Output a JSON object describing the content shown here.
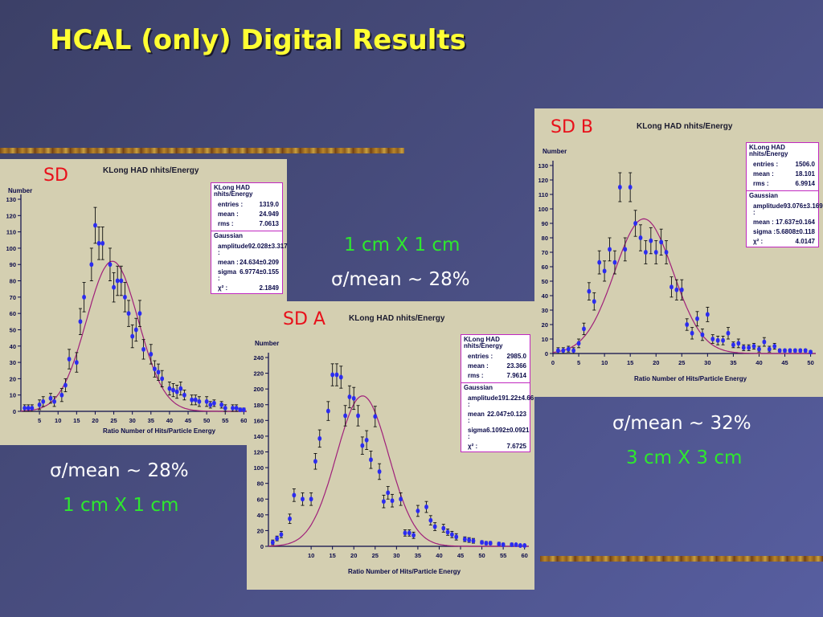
{
  "slide": {
    "title": "HCAL (only) Digital Results",
    "notes": {
      "top_cell": "1 cm X 1 cm",
      "top_sigma": "σ/mean ~ 28%",
      "left_sigma": "σ/mean ~ 28%",
      "left_cell": "1 cm X 1 cm",
      "right_sigma": "σ/mean ~ 32%",
      "right_cell": "3 cm X 3 cm"
    }
  },
  "chart_data": [
    {
      "id": "sd",
      "label": "SD",
      "type": "scatter",
      "title": "KLong HAD nhits/Energy",
      "xlabel": "Ratio Number of Hits/Particle Energy",
      "ylabel": "Number",
      "xlim": [
        0,
        61
      ],
      "ylim": [
        0,
        130
      ],
      "xticks": [
        5,
        10,
        15,
        20,
        25,
        30,
        35,
        40,
        45,
        50,
        55,
        60
      ],
      "yticks": [
        0,
        10,
        20,
        30,
        40,
        50,
        60,
        70,
        80,
        90,
        100,
        110,
        120,
        130
      ],
      "stats": {
        "header": "KLong HAD nhits/Energy",
        "entries": "1319.0",
        "mean": "24.949",
        "rms": "7.0613",
        "fit": "Gaussian",
        "amplitude": "92.028±3.317",
        "fit_mean": "24.634±0.209",
        "sigma": "6.9774±0.155",
        "chi2": "2.1849"
      },
      "fit": {
        "amplitude": 92.0,
        "mean": 24.63,
        "sigma": 6.98
      },
      "points": {
        "x": [
          1,
          2,
          3,
          5,
          6,
          8,
          9,
          11,
          12,
          13,
          15,
          16,
          17,
          19,
          20,
          21,
          22,
          24,
          25,
          26,
          27,
          28,
          29,
          30,
          31,
          32,
          33,
          35,
          36,
          37,
          38,
          40,
          41,
          42,
          43,
          44,
          46,
          47,
          48,
          50,
          51,
          52,
          54,
          55,
          57,
          58,
          59,
          60
        ],
        "y": [
          2,
          2,
          2,
          4,
          6,
          8,
          6,
          10,
          16,
          32,
          30,
          55,
          70,
          90,
          114,
          103,
          103,
          90,
          76,
          80,
          80,
          70,
          60,
          46,
          50,
          60,
          38,
          35,
          26,
          24,
          20,
          14,
          13,
          12,
          14,
          10,
          7,
          7,
          6,
          6,
          4,
          5,
          4,
          2,
          2,
          2,
          1,
          1
        ],
        "err": [
          2,
          2,
          2,
          3,
          3,
          3,
          3,
          4,
          4,
          6,
          6,
          8,
          9,
          10,
          11,
          10,
          10,
          10,
          9,
          9,
          9,
          9,
          8,
          7,
          7,
          8,
          6,
          6,
          5,
          5,
          5,
          4,
          4,
          4,
          4,
          3,
          3,
          3,
          3,
          3,
          2,
          2,
          2,
          2,
          2,
          2,
          1,
          1
        ]
      }
    },
    {
      "id": "sda",
      "label": "SD A",
      "type": "scatter",
      "title": "KLong HAD nhits/Energy",
      "xlabel": "Ratio Number of Hits/Particle Energy",
      "ylabel": "Number",
      "xlim": [
        0,
        61
      ],
      "ylim": [
        0,
        240
      ],
      "xticks": [
        10,
        15,
        20,
        25,
        30,
        35,
        40,
        45,
        50,
        55,
        60
      ],
      "yticks": [
        0,
        20,
        40,
        60,
        80,
        100,
        120,
        140,
        160,
        180,
        200,
        220,
        240
      ],
      "stats": {
        "header": "KLong HAD nhits/Energy",
        "entries": "2985.0",
        "mean": "23.366",
        "rms": "7.9614",
        "fit": "Gaussian",
        "amplitude": "191.22±4.66",
        "fit_mean": "22.047±0.123",
        "sigma": "6.1092±0.0921",
        "chi2": "7.6725"
      },
      "fit": {
        "amplitude": 191.2,
        "mean": 22.05,
        "sigma": 6.11
      },
      "points": {
        "x": [
          1,
          2,
          3,
          5,
          6,
          8,
          10,
          11,
          12,
          14,
          15,
          16,
          17,
          18,
          19,
          20,
          21,
          22,
          23,
          24,
          25,
          26,
          27,
          28,
          29,
          31,
          32,
          33,
          34,
          35,
          37,
          38,
          39,
          41,
          42,
          43,
          44,
          46,
          47,
          48,
          50,
          51,
          52,
          54,
          55,
          57,
          58,
          59,
          60
        ],
        "y": [
          5,
          10,
          15,
          35,
          65,
          60,
          60,
          108,
          137,
          172,
          218,
          218,
          215,
          166,
          190,
          188,
          166,
          128,
          135,
          110,
          165,
          95,
          57,
          68,
          58,
          60,
          17,
          17,
          14,
          45,
          50,
          33,
          25,
          23,
          18,
          15,
          12,
          9,
          8,
          7,
          5,
          4,
          4,
          3,
          2,
          2,
          2,
          1,
          1
        ],
        "err": [
          3,
          3,
          4,
          6,
          8,
          8,
          8,
          10,
          11,
          12,
          14,
          14,
          14,
          13,
          14,
          14,
          13,
          11,
          12,
          11,
          13,
          10,
          8,
          8,
          8,
          8,
          4,
          4,
          4,
          7,
          7,
          6,
          5,
          5,
          4,
          4,
          4,
          3,
          3,
          3,
          2,
          2,
          2,
          2,
          2,
          2,
          1,
          1,
          1
        ]
      }
    },
    {
      "id": "sdb",
      "label": "SD B",
      "type": "scatter",
      "title": "KLong HAD nhits/Energy",
      "xlabel": "Ratio Number of Hits/Particle Energy",
      "ylabel": "Number",
      "xlim": [
        0,
        51
      ],
      "ylim": [
        0,
        130
      ],
      "xticks": [
        0,
        5,
        10,
        15,
        20,
        25,
        30,
        35,
        40,
        45,
        50
      ],
      "yticks": [
        0,
        10,
        20,
        30,
        40,
        50,
        60,
        70,
        80,
        90,
        100,
        110,
        120,
        130
      ],
      "stats": {
        "header": "KLong HAD nhits/Energy",
        "entries": "1506.0",
        "mean": "18.101",
        "rms": "6.9914",
        "fit": "Gaussian",
        "amplitude": "93.076±3.169",
        "fit_mean": "17.637±0.164",
        "sigma": "5.6808±0.118",
        "chi2": "4.0147"
      },
      "fit": {
        "amplitude": 93.1,
        "mean": 17.64,
        "sigma": 5.68
      },
      "points": {
        "x": [
          1,
          2,
          3,
          4,
          5,
          6,
          7,
          8,
          9,
          10,
          11,
          12,
          13,
          14,
          15,
          16,
          17,
          18,
          19,
          20,
          21,
          22,
          23,
          24,
          25,
          26,
          27,
          28,
          29,
          30,
          31,
          32,
          33,
          34,
          35,
          36,
          37,
          38,
          39,
          40,
          41,
          42,
          43,
          44,
          45,
          46,
          47,
          48,
          49,
          50
        ],
        "y": [
          2,
          2,
          3,
          2,
          7,
          17,
          43,
          36,
          63,
          57,
          72,
          63,
          115,
          72,
          115,
          90,
          80,
          70,
          78,
          70,
          77,
          70,
          46,
          44,
          44,
          20,
          14,
          24,
          13,
          27,
          10,
          9,
          9,
          14,
          6,
          7,
          4,
          4,
          5,
          3,
          8,
          3,
          5,
          2,
          2,
          2,
          2,
          2,
          2,
          1
        ],
        "err": [
          2,
          2,
          2,
          2,
          3,
          4,
          6,
          6,
          8,
          7,
          8,
          8,
          10,
          8,
          10,
          9,
          9,
          8,
          9,
          8,
          9,
          8,
          7,
          7,
          7,
          4,
          4,
          5,
          4,
          5,
          3,
          3,
          3,
          4,
          2,
          3,
          2,
          2,
          2,
          2,
          3,
          2,
          2,
          1,
          1,
          1,
          1,
          1,
          1,
          1
        ]
      }
    }
  ]
}
